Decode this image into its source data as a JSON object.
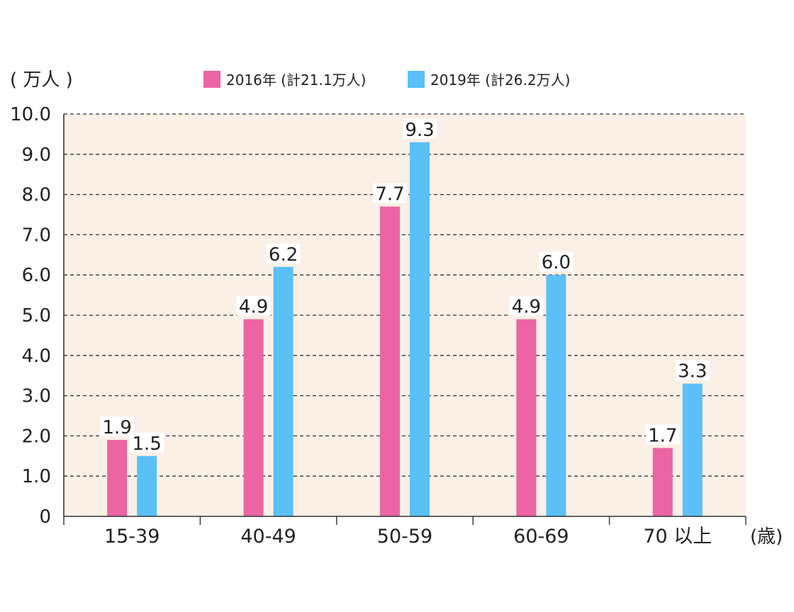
{
  "chart_data": {
    "type": "bar",
    "y_unit_label": "( 万人 )",
    "x_unit_label": "(歳)",
    "categories": [
      "15-39",
      "40-49",
      "50-59",
      "60-69",
      "70 以上"
    ],
    "series": [
      {
        "name": "2016年 (計21.1万人)",
        "color": "#ec64a4",
        "values": [
          1.9,
          4.9,
          7.7,
          4.9,
          1.7
        ],
        "labels": [
          "1.9",
          "4.9",
          "7.7",
          "4.9",
          "1.7"
        ]
      },
      {
        "name": "2019年 (計26.2万人)",
        "color": "#5bc0f8",
        "values": [
          1.5,
          6.2,
          9.3,
          6.0,
          3.3
        ],
        "labels": [
          "1.5",
          "6.2",
          "9.3",
          "6.0",
          "3.3"
        ]
      }
    ],
    "ylim": [
      0,
      10
    ],
    "yticks": [
      "0",
      "1.0",
      "2.0",
      "3.0",
      "4.0",
      "5.0",
      "6.0",
      "7.0",
      "8.0",
      "9.0",
      "10.0"
    ],
    "grid": true,
    "legend_position": "top",
    "plot_background": "#fbf0e6"
  }
}
